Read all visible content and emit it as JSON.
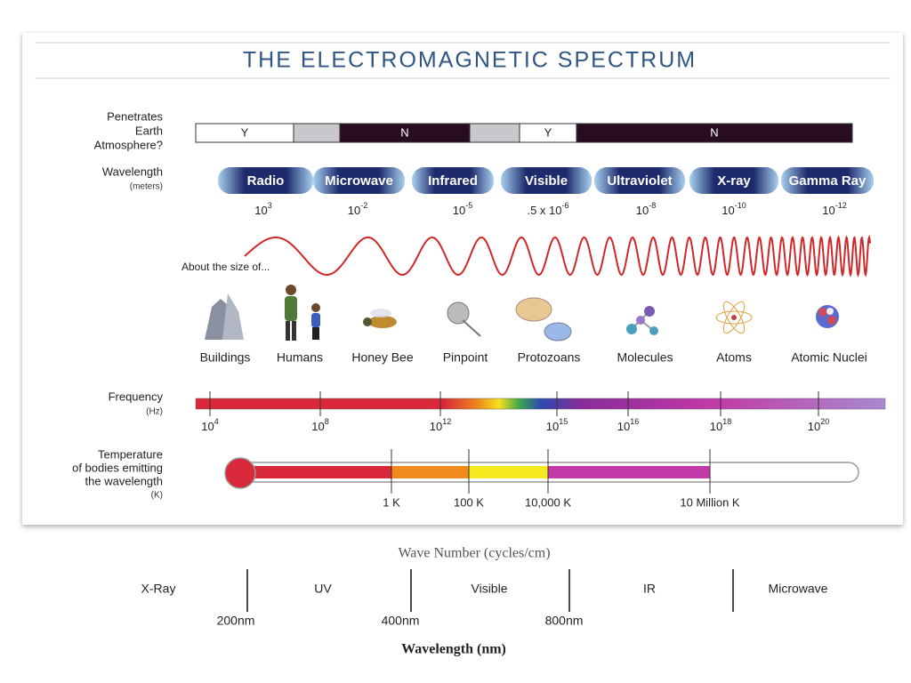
{
  "title": "THE ELECTROMAGNETIC SPECTRUM",
  "atmosphere": {
    "label": [
      "Penetrates",
      "Earth",
      "Atmosphere?"
    ],
    "segments": [
      "Y",
      "N",
      "Y",
      "N"
    ]
  },
  "wavelength": {
    "label": "Wavelength",
    "unit": "(meters)",
    "bands": [
      "Radio",
      "Microwave",
      "Infrared",
      "Visible",
      "Ultraviolet",
      "X-ray",
      "Gamma Ray"
    ],
    "values": [
      {
        "base": "10",
        "exp": "3"
      },
      {
        "base": "10",
        "exp": "-2"
      },
      {
        "base": "10",
        "exp": "-5"
      },
      {
        "base": ".5 x 10",
        "exp": "-6"
      },
      {
        "base": "10",
        "exp": "-8"
      },
      {
        "base": "10",
        "exp": "-10"
      },
      {
        "base": "10",
        "exp": "-12"
      }
    ]
  },
  "wave_note": "About the size of...",
  "objects": [
    "Buildings",
    "Humans",
    "Honey Bee",
    "Pinpoint",
    "Protozoans",
    "Molecules",
    "Atoms",
    "Atomic Nuclei"
  ],
  "frequency": {
    "label": "Frequency",
    "unit": "(Hz)",
    "ticks": [
      {
        "base": "10",
        "exp": "4"
      },
      {
        "base": "10",
        "exp": "8"
      },
      {
        "base": "10",
        "exp": "12"
      },
      {
        "base": "10",
        "exp": "15"
      },
      {
        "base": "10",
        "exp": "16"
      },
      {
        "base": "10",
        "exp": "18"
      },
      {
        "base": "10",
        "exp": "20"
      }
    ]
  },
  "temperature": {
    "label": [
      "Temperature",
      "of bodies emitting",
      "the wavelength"
    ],
    "unit": "(K)",
    "ticks": [
      "1 K",
      "100 K",
      "10,000 K",
      "10 Million K"
    ]
  },
  "lower": {
    "title": "Wave Number (cycles/cm)",
    "regions": [
      "X-Ray",
      "UV",
      "Visible",
      "IR",
      "Microwave"
    ],
    "boundaries": [
      "200nm",
      "400nm",
      "800nm"
    ],
    "axis_label": "Wavelength (nm)"
  }
}
